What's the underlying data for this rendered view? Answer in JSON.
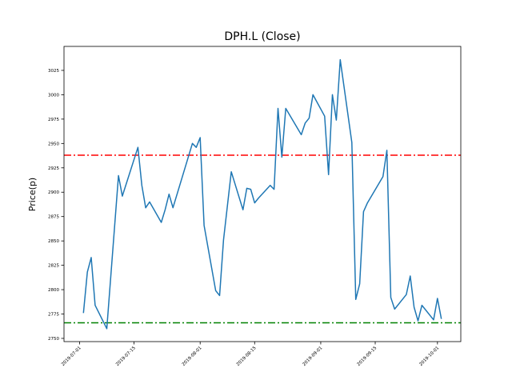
{
  "chart_data": {
    "type": "line",
    "title": "DPH.L (Close)",
    "xlabel": "",
    "ylabel": "Price(p)",
    "xlim": [
      "2019-06-27",
      "2019-10-07"
    ],
    "ylim": [
      2746.7,
      3049.6
    ],
    "grid": false,
    "x_ticks": [
      "2019-07-01",
      "2019-07-15",
      "2019-08-01",
      "2019-08-15",
      "2019-09-01",
      "2019-09-15",
      "2019-10-01"
    ],
    "y_ticks": [
      2750,
      2775,
      2800,
      2825,
      2850,
      2875,
      2900,
      2925,
      2950,
      2975,
      3000,
      3025
    ],
    "series": [
      {
        "name": "Close",
        "color": "#1f77b4",
        "x": [
          "2019-07-02",
          "2019-07-03",
          "2019-07-04",
          "2019-07-05",
          "2019-07-08",
          "2019-07-11",
          "2019-07-12",
          "2019-07-16",
          "2019-07-17",
          "2019-07-18",
          "2019-07-19",
          "2019-07-22",
          "2019-07-23",
          "2019-07-24",
          "2019-07-25",
          "2019-07-30",
          "2019-07-31",
          "2019-08-01",
          "2019-08-02",
          "2019-08-05",
          "2019-08-06",
          "2019-08-07",
          "2019-08-09",
          "2019-08-12",
          "2019-08-13",
          "2019-08-14",
          "2019-08-15",
          "2019-08-16",
          "2019-08-19",
          "2019-08-20",
          "2019-08-21",
          "2019-08-22",
          "2019-08-23",
          "2019-08-27",
          "2019-08-28",
          "2019-08-29",
          "2019-08-30",
          "2019-09-02",
          "2019-09-03",
          "2019-09-04",
          "2019-09-05",
          "2019-09-06",
          "2019-09-09",
          "2019-09-10",
          "2019-09-11",
          "2019-09-12",
          "2019-09-13",
          "2019-09-17",
          "2019-09-18",
          "2019-09-19",
          "2019-09-20",
          "2019-09-23",
          "2019-09-24",
          "2019-09-25",
          "2019-09-26",
          "2019-09-27",
          "2019-09-30",
          "2019-10-01",
          "2019-10-02"
        ],
        "values": [
          2776,
          2818,
          2833,
          2784,
          2760,
          2917,
          2896,
          2946,
          2907,
          2884,
          2890,
          2869,
          2882,
          2898,
          2884,
          2950,
          2946,
          2956,
          2866,
          2799,
          2794,
          2851,
          2921,
          2882,
          2904,
          2903,
          2889,
          2894,
          2907,
          2903,
          2986,
          2936,
          2986,
          2959,
          2971,
          2976,
          3000,
          2978,
          2918,
          3000,
          2974,
          3036,
          2951,
          2790,
          2806,
          2880,
          2889,
          2916,
          2943,
          2792,
          2780,
          2795,
          2814,
          2782,
          2768,
          2784,
          2769,
          2791,
          2770
        ]
      }
    ],
    "hlines": [
      {
        "name": "upper",
        "value": 2938,
        "color": "#ff0000",
        "style": "dashdot"
      },
      {
        "name": "lower",
        "value": 2766,
        "color": "#008000",
        "style": "dashdot"
      }
    ]
  }
}
